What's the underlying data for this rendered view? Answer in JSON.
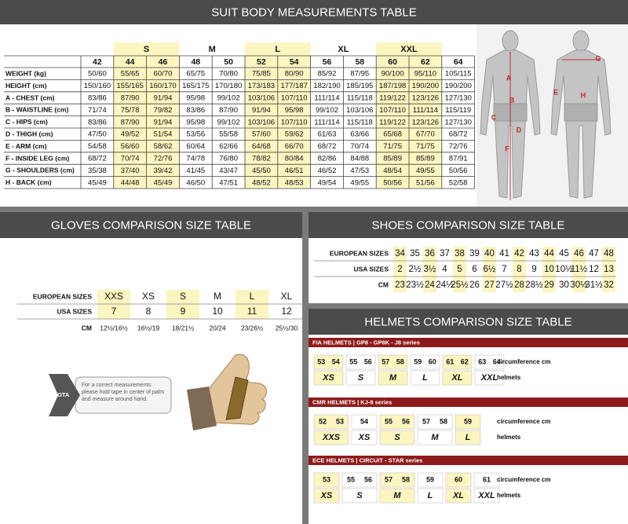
{
  "suit": {
    "title": "SUIT BODY MEASUREMENTS TABLE",
    "size_groups": [
      {
        "label": null,
        "sizes": [
          42
        ]
      },
      {
        "label": "S",
        "sizes": [
          44,
          46
        ]
      },
      {
        "label": "M",
        "sizes": [
          48,
          50
        ]
      },
      {
        "label": "L",
        "sizes": [
          52,
          54
        ]
      },
      {
        "label": "XL",
        "sizes": [
          56,
          58
        ]
      },
      {
        "label": "XXL",
        "sizes": [
          60,
          62
        ]
      },
      {
        "label": null,
        "sizes": [
          64
        ]
      }
    ],
    "rows": [
      {
        "label": "WEIGHT (kg)",
        "values": [
          "50/60",
          "55/65",
          "60/70",
          "65/75",
          "70/80",
          "75/85",
          "80/90",
          "85/92",
          "87/95",
          "90/100",
          "95/110",
          "105/115"
        ]
      },
      {
        "label": "HEIGHT (cm)",
        "values": [
          "150/160",
          "155/165",
          "160/170",
          "165/175",
          "170/180",
          "173/183",
          "177/187",
          "182/190",
          "185/195",
          "187/198",
          "190/200",
          "190/200"
        ]
      },
      {
        "label": "A - CHEST (cm)",
        "values": [
          "83/86",
          "87/90",
          "91/94",
          "95/98",
          "99/102",
          "103/106",
          "107/110",
          "111/114",
          "115/118",
          "119/122",
          "123/126",
          "127/130"
        ]
      },
      {
        "label": "B - WAISTLINE (cm)",
        "values": [
          "71/74",
          "75/78",
          "79/82",
          "83/86",
          "87/90",
          "91/94",
          "95/98",
          "99/102",
          "103/106",
          "107/110",
          "111/114",
          "115/119"
        ]
      },
      {
        "label": "C - HIPS (cm)",
        "values": [
          "83/86",
          "87/90",
          "91/94",
          "95/98",
          "99/102",
          "103/106",
          "107/110",
          "111/114",
          "115/118",
          "119/122",
          "123/126",
          "127/130"
        ]
      },
      {
        "label": "D - THIGH (cm)",
        "values": [
          "47/50",
          "49/52",
          "51/54",
          "53/56",
          "55/58",
          "57/60",
          "59/62",
          "61/63",
          "63/66",
          "65/68",
          "67/70",
          "68/72"
        ]
      },
      {
        "label": "E - ARM (cm)",
        "values": [
          "54/58",
          "56/60",
          "58/62",
          "60/64",
          "62/66",
          "64/68",
          "66/70",
          "68/72",
          "70/74",
          "71/75",
          "71/75",
          "72/76"
        ]
      },
      {
        "label": "F - INSIDE LEG (cm)",
        "values": [
          "68/72",
          "70/74",
          "72/76",
          "74/78",
          "76/80",
          "78/82",
          "80/84",
          "82/86",
          "84/88",
          "85/89",
          "85/89",
          "87/91"
        ]
      },
      {
        "label": "G - SHOULDERS (cm)",
        "values": [
          "35/38",
          "37/40",
          "39/42",
          "41/45",
          "43/47",
          "45/50",
          "46/51",
          "46/52",
          "47/53",
          "48/54",
          "49/55",
          "50/56"
        ]
      },
      {
        "label": "H - BACK (cm)",
        "values": [
          "45/49",
          "44/48",
          "45/49",
          "46/50",
          "47/51",
          "48/52",
          "48/53",
          "49/54",
          "49/55",
          "50/56",
          "51/56",
          "52/58"
        ]
      }
    ]
  },
  "body_figures": {
    "front_labels": [
      "A",
      "B",
      "C",
      "D",
      "F"
    ],
    "back_labels": [
      "G",
      "E",
      "H"
    ]
  },
  "gloves": {
    "title": "GLOVES COMPARISON SIZE TABLE",
    "rows": [
      {
        "label": "EUROPEAN SIZES",
        "values": [
          "XXS",
          "XS",
          "S",
          "M",
          "L",
          "XL"
        ]
      },
      {
        "label": "USA SIZES",
        "values": [
          7,
          8,
          9,
          10,
          11,
          12
        ]
      },
      {
        "label": "CM",
        "values": [
          "12½/16½",
          "16½/19",
          "18/21½",
          "20/24",
          "23/26½",
          "25½/30"
        ]
      }
    ],
    "note_tag": "NOTA",
    "note": "For a correct measurements: please hold tape in center of palm and measure around hand."
  },
  "shoes": {
    "title": "SHOES COMPARISON SIZE TABLE",
    "rows": [
      {
        "label": "EUROPEAN SIZES",
        "values": [
          34,
          35,
          36,
          37,
          38,
          39,
          40,
          41,
          42,
          43,
          44,
          45,
          46,
          47,
          48
        ]
      },
      {
        "label": "USA SIZES",
        "values": [
          "2",
          "2½",
          "3½",
          "4",
          "5",
          "6",
          "6½",
          "7",
          "8",
          "9",
          "10",
          "10½",
          "11½",
          "12",
          "13"
        ]
      },
      {
        "label": "CM",
        "values": [
          "23",
          "23½",
          "24",
          "24½",
          "25½",
          "26",
          "27",
          "27½",
          "28",
          "28½",
          "29",
          "30",
          "30½",
          "31½",
          "32"
        ]
      }
    ]
  },
  "helmets": {
    "title": "HELMETS COMPARISON SIZE TABLE",
    "sections": [
      {
        "title": "FIA HELMETS | GP8 - GP8K - J8 series",
        "circumference_label": "circumference cm",
        "helmets_label": "helmets",
        "groups": [
          {
            "sizes": [
              53,
              54
            ],
            "label": "XS"
          },
          {
            "sizes": [
              55,
              56
            ],
            "label": "S"
          },
          {
            "sizes": [
              57,
              58
            ],
            "label": "M"
          },
          {
            "sizes": [
              59,
              60
            ],
            "label": "L"
          },
          {
            "sizes": [
              61,
              62
            ],
            "label": "XL"
          },
          {
            "sizes": [
              63,
              64
            ],
            "label": "XXL"
          }
        ]
      },
      {
        "title": "CMR HELMETS | KJ-8 series",
        "circumference_label": "circumference cm",
        "helmets_label": "helmets",
        "groups": [
          {
            "sizes": [
              52,
              53
            ],
            "label": "XXS"
          },
          {
            "sizes": [
              54
            ],
            "label": "XS"
          },
          {
            "sizes": [
              55,
              56
            ],
            "label": "S"
          },
          {
            "sizes": [
              57,
              58
            ],
            "label": "M"
          },
          {
            "sizes": [
              59
            ],
            "label": "L"
          }
        ]
      },
      {
        "title": "ECE HELMETS | CIRCUIT - STAR series",
        "circumference_label": "circumference cm",
        "helmets_label": "helmets",
        "groups": [
          {
            "sizes": [
              53
            ],
            "label": "XS"
          },
          {
            "sizes": [
              55,
              56
            ],
            "label": "S"
          },
          {
            "sizes": [
              57,
              58
            ],
            "label": "M"
          },
          {
            "sizes": [
              59
            ],
            "label": "L"
          },
          {
            "sizes": [
              60
            ],
            "label": "XL"
          },
          {
            "sizes": [
              61
            ],
            "label": "XXL"
          }
        ]
      }
    ]
  }
}
